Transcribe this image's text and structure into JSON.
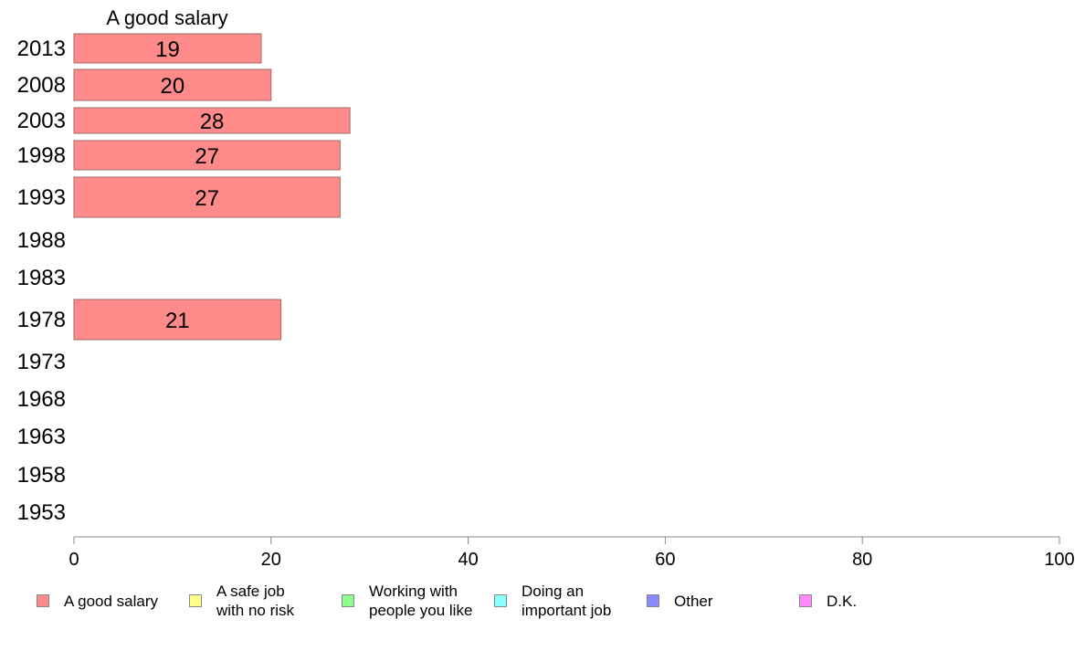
{
  "chart_data": {
    "type": "bar",
    "orientation": "horizontal",
    "title": "A good salary",
    "categories": [
      "2013",
      "2008",
      "2003",
      "1998",
      "1993",
      "1988",
      "1983",
      "1978",
      "1973",
      "1968",
      "1963",
      "1958",
      "1953"
    ],
    "series": [
      {
        "name": "A good salary",
        "color": "#ff8a8a",
        "values": [
          19,
          20,
          28,
          27,
          27,
          null,
          null,
          21,
          null,
          null,
          null,
          null,
          null
        ]
      }
    ],
    "xlim": [
      0,
      100
    ],
    "xticks": [
      0,
      20,
      40,
      60,
      80,
      100
    ],
    "xlabel": "",
    "ylabel": "",
    "grid": false,
    "legend_placement": "bottom"
  },
  "legend": [
    {
      "label": "A good salary",
      "color": "#ff8a8a"
    },
    {
      "label": "A safe job\nwith no risk",
      "color": "#ffff8a"
    },
    {
      "label": "Working with\npeople you like",
      "color": "#8aff8a"
    },
    {
      "label": "Doing an\nimportant job",
      "color": "#8affff"
    },
    {
      "label": "Other",
      "color": "#8a8aff"
    },
    {
      "label": "D.K.",
      "color": "#ff8aff"
    }
  ]
}
